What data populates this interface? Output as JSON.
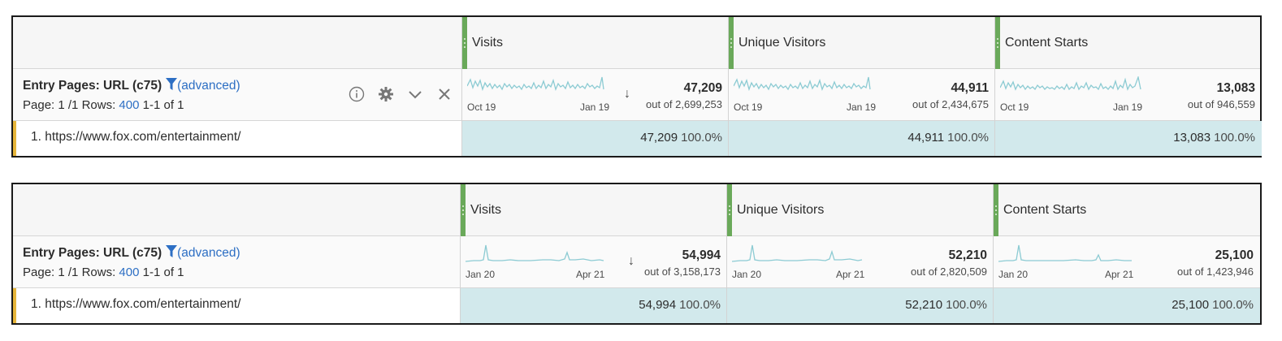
{
  "panels": [
    {
      "dimension": {
        "title": "Entry Pages: URL (c75)",
        "filter_label": "(advanced)",
        "page_label": "Page: 1 /1",
        "rows_label": "Rows:",
        "rows_value": "400",
        "range_label": "1-1 of 1"
      },
      "icons": [
        "info-icon",
        "gear-icon",
        "chevron-down-icon",
        "close-icon"
      ],
      "metrics": [
        {
          "name": "Visits",
          "total": "47,209",
          "out_of": "out of 2,699,253",
          "spark_start": "Oct 19",
          "spark_end": "Jan 19",
          "sorted": true
        },
        {
          "name": "Unique Visitors",
          "total": "44,911",
          "out_of": "out of 2,434,675",
          "spark_start": "Oct 19",
          "spark_end": "Jan 19",
          "sorted": false
        },
        {
          "name": "Content Starts",
          "total": "13,083",
          "out_of": "out of 946,559",
          "spark_start": "Oct 19",
          "spark_end": "Jan 19",
          "sorted": false
        }
      ],
      "rows": [
        {
          "label": "1. https://www.fox.com/entertainment/",
          "values": [
            "47,209",
            "44,911",
            "13,083"
          ],
          "percents": [
            "100.0%",
            "100.0%",
            "100.0%"
          ]
        }
      ]
    },
    {
      "dimension": {
        "title": "Entry Pages: URL (c75)",
        "filter_label": "(advanced)",
        "page_label": "Page: 1 /1",
        "rows_label": "Rows:",
        "rows_value": "400",
        "range_label": "1-1 of 1"
      },
      "icons": [],
      "metrics": [
        {
          "name": "Visits",
          "total": "54,994",
          "out_of": "out of 3,158,173",
          "spark_start": "Jan 20",
          "spark_end": "Apr 21",
          "sorted": true
        },
        {
          "name": "Unique Visitors",
          "total": "52,210",
          "out_of": "out of 2,820,509",
          "spark_start": "Jan 20",
          "spark_end": "Apr 21",
          "sorted": false
        },
        {
          "name": "Content Starts",
          "total": "25,100",
          "out_of": "out of 1,423,946",
          "spark_start": "Jan 20",
          "spark_end": "Apr 21",
          "sorted": false
        }
      ],
      "rows": [
        {
          "label": "1. https://www.fox.com/entertainment/",
          "values": [
            "54,994",
            "52,210",
            "25,100"
          ],
          "percents": [
            "100.0%",
            "100.0%",
            "100.0%"
          ]
        }
      ]
    }
  ],
  "colors": {
    "accent_link": "#2d6fc4",
    "metric_handle": "#6aa95a",
    "bar_fill": "#d2e9ec",
    "sparkline": "#8ccbd3",
    "row_accent": "#e6b53a"
  }
}
